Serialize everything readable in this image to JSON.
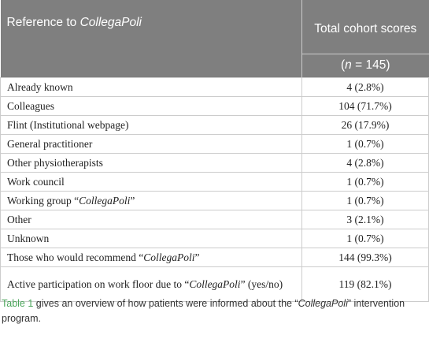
{
  "table": {
    "header": {
      "col1": [
        {
          "text": "Reference to "
        },
        {
          "text": "CollegaPoli",
          "italic": true
        }
      ],
      "col2": "Total cohort scores",
      "col2_sub": [
        {
          "text": "("
        },
        {
          "text": "n",
          "italic": true
        },
        {
          "text": " = 145)"
        }
      ]
    },
    "rows": [
      [
        "Already known",
        "4 (2.8%)"
      ],
      [
        "Colleagues",
        "104 (71.7%)"
      ],
      [
        "Flint (Institutional webpage)",
        "26 (17.9%)"
      ],
      [
        "General practitioner",
        "1 (0.7%)"
      ],
      [
        "Other physiotherapists",
        "4 (2.8%)"
      ],
      [
        "Work council",
        "1 (0.7%)"
      ],
      [
        [
          {
            "text": "Working group “"
          },
          {
            "text": "CollegaPoli",
            "italic": true
          },
          {
            "text": "”"
          }
        ],
        "1 (0.7%)"
      ],
      [
        "Other",
        "3 (2.1%)"
      ],
      [
        "Unknown",
        "1 (0.7%)"
      ],
      [
        [
          {
            "text": "Those who would recommend “"
          },
          {
            "text": "CollegaPoli",
            "italic": true
          },
          {
            "text": "”"
          }
        ],
        "144 (99.3%)"
      ],
      [
        [
          {
            "text": "Active participation on work floor due to “"
          },
          {
            "text": "CollegaPoli",
            "italic": true
          },
          {
            "text": "” (yes/no)"
          }
        ],
        "119 (82.1%)"
      ]
    ]
  },
  "caption": [
    {
      "text": "Table 1",
      "highlight": true
    },
    {
      "text": " gives an overview of how patients were informed about the “"
    },
    {
      "text": "CollegaPoli",
      "italic": true
    },
    {
      "text": "” intervention program."
    }
  ]
}
